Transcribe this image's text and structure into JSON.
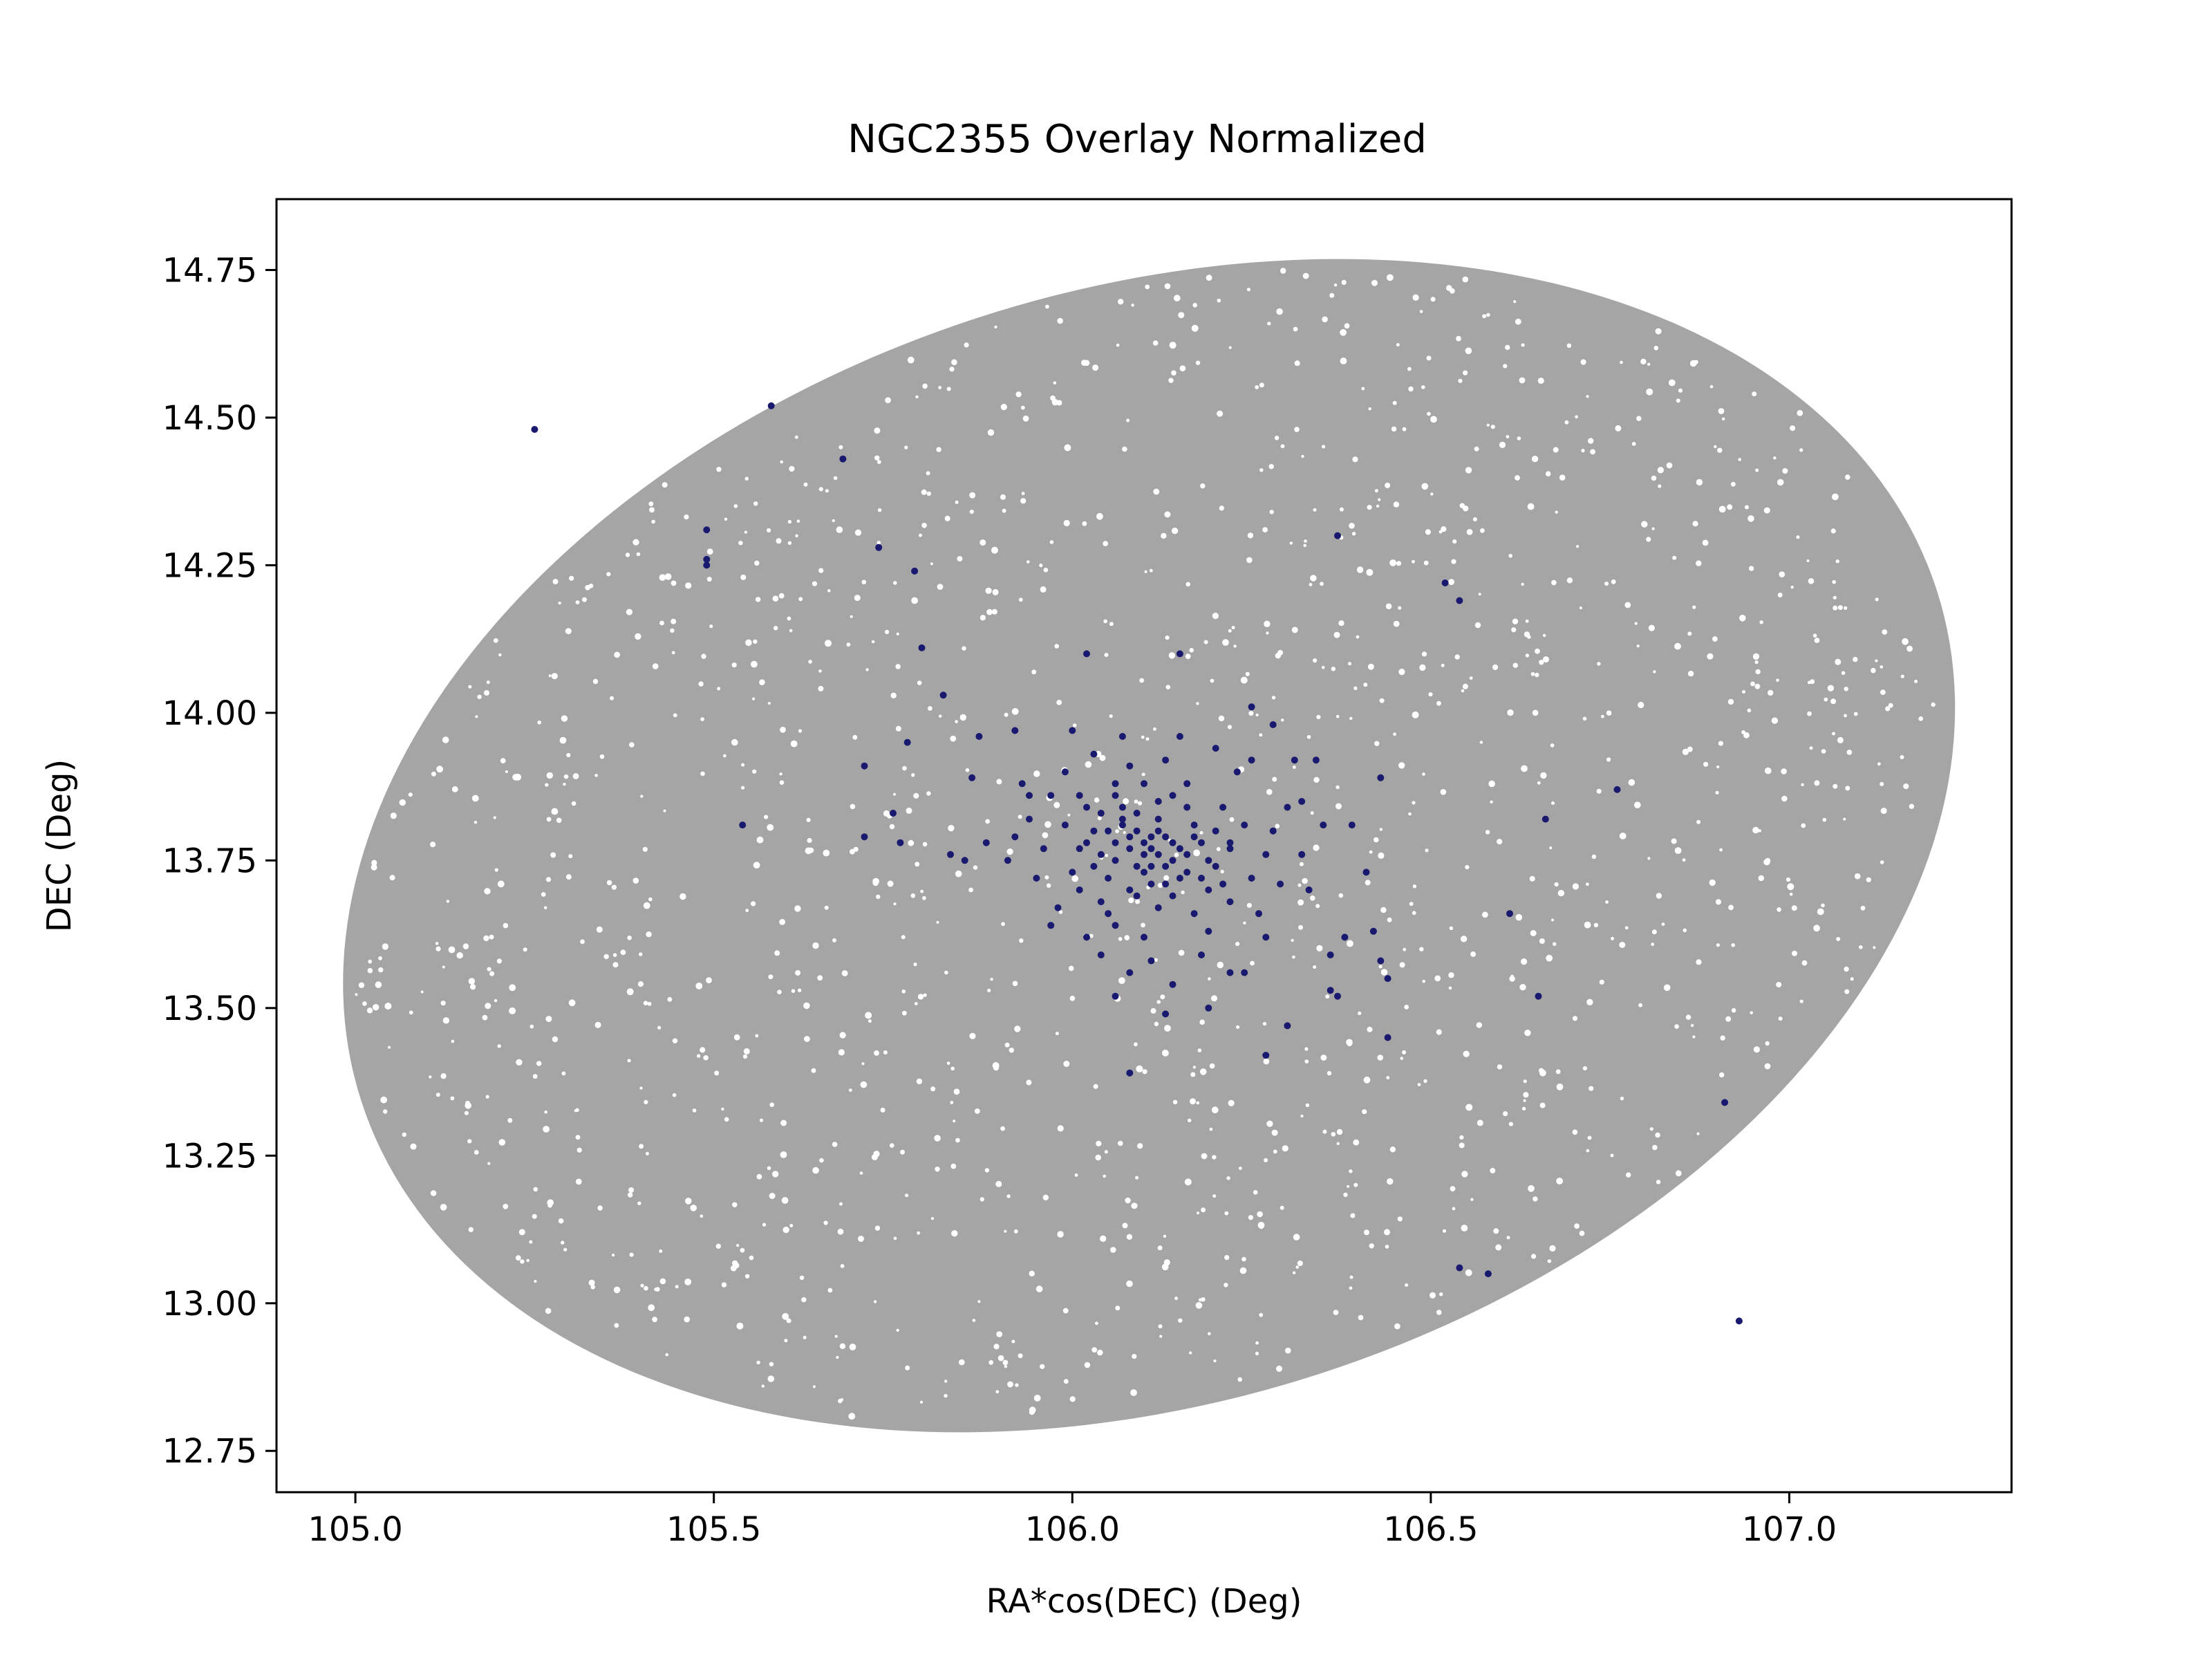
{
  "chart_data": {
    "type": "scatter",
    "title": "NGC2355 Overlay Normalized",
    "xlabel": "RA*cos(DEC) (Deg)",
    "ylabel": "DEC (Deg)",
    "xlim": [
      104.89,
      107.31
    ],
    "ylim": [
      12.68,
      14.87
    ],
    "grid": false,
    "x_ticks": [
      {
        "value": 105.0,
        "label": "105.0"
      },
      {
        "value": 105.5,
        "label": "105.5"
      },
      {
        "value": 106.0,
        "label": "106.0"
      },
      {
        "value": 106.5,
        "label": "106.5"
      },
      {
        "value": 107.0,
        "label": "107.0"
      }
    ],
    "y_ticks": [
      {
        "value": 12.75,
        "label": "12.75"
      },
      {
        "value": 13.0,
        "label": "13.00"
      },
      {
        "value": 13.25,
        "label": "13.25"
      },
      {
        "value": 13.5,
        "label": "13.50"
      },
      {
        "value": 13.75,
        "label": "13.75"
      },
      {
        "value": 14.0,
        "label": "14.00"
      },
      {
        "value": 14.25,
        "label": "14.25"
      },
      {
        "value": 14.5,
        "label": "14.50"
      },
      {
        "value": 14.75,
        "label": "14.75"
      }
    ],
    "field": {
      "description": "dense uniform field-star region (elliptical)",
      "color": "#a5a5a5",
      "center": [
        106.107,
        13.775
      ],
      "semi_axes_deg": [
        1.155,
        0.94
      ],
      "rotation_deg": -18
    },
    "series": [
      {
        "color": "#191970",
        "points": [
          [
            105.25,
            14.48
          ],
          [
            105.58,
            14.52
          ],
          [
            105.68,
            14.43
          ],
          [
            105.49,
            14.31
          ],
          [
            105.49,
            14.26
          ],
          [
            105.49,
            14.25
          ],
          [
            105.73,
            14.28
          ],
          [
            105.78,
            14.24
          ],
          [
            106.37,
            14.3
          ],
          [
            106.52,
            14.22
          ],
          [
            106.54,
            14.19
          ],
          [
            105.79,
            14.11
          ],
          [
            106.02,
            14.1
          ],
          [
            106.15,
            14.1
          ],
          [
            105.82,
            14.03
          ],
          [
            106.25,
            14.01
          ],
          [
            105.71,
            13.91
          ],
          [
            105.54,
            13.81
          ],
          [
            105.71,
            13.79
          ],
          [
            105.75,
            13.83
          ],
          [
            105.76,
            13.78
          ],
          [
            105.77,
            13.95
          ],
          [
            105.83,
            13.76
          ],
          [
            105.85,
            13.75
          ],
          [
            105.87,
            13.96
          ],
          [
            105.86,
            13.89
          ],
          [
            105.88,
            13.78
          ],
          [
            105.91,
            13.75
          ],
          [
            105.94,
            13.86
          ],
          [
            105.92,
            13.97
          ],
          [
            106.43,
            13.89
          ],
          [
            106.66,
            13.82
          ],
          [
            106.76,
            13.87
          ],
          [
            106.39,
            13.81
          ],
          [
            106.35,
            13.81
          ],
          [
            106.32,
            13.85
          ],
          [
            106.34,
            13.92
          ],
          [
            106.31,
            13.92
          ],
          [
            106.28,
            13.98
          ],
          [
            106.41,
            13.73
          ],
          [
            106.42,
            13.63
          ],
          [
            106.38,
            13.62
          ],
          [
            106.43,
            13.58
          ],
          [
            106.44,
            13.55
          ],
          [
            106.36,
            13.59
          ],
          [
            106.37,
            13.52
          ],
          [
            106.36,
            13.53
          ],
          [
            106.44,
            13.45
          ],
          [
            106.61,
            13.66
          ],
          [
            106.65,
            13.52
          ],
          [
            106.3,
            13.47
          ],
          [
            106.27,
            13.42
          ],
          [
            106.19,
            13.5
          ],
          [
            106.13,
            13.49
          ],
          [
            106.08,
            13.39
          ],
          [
            106.22,
            13.56
          ],
          [
            106.24,
            13.56
          ],
          [
            106.06,
            13.52
          ],
          [
            106.08,
            13.56
          ],
          [
            106.91,
            13.34
          ],
          [
            106.54,
            13.06
          ],
          [
            106.58,
            13.05
          ],
          [
            106.93,
            12.97
          ],
          [
            106.1,
            13.78
          ],
          [
            106.12,
            13.76
          ],
          [
            106.09,
            13.8
          ],
          [
            106.11,
            13.74
          ],
          [
            106.13,
            13.79
          ],
          [
            106.08,
            13.77
          ],
          [
            106.14,
            13.75
          ],
          [
            106.1,
            13.73
          ],
          [
            106.07,
            13.81
          ],
          [
            106.15,
            13.77
          ],
          [
            106.12,
            13.82
          ],
          [
            106.09,
            13.74
          ],
          [
            106.06,
            13.78
          ],
          [
            106.16,
            13.73
          ],
          [
            106.11,
            13.79
          ],
          [
            106.04,
            13.76
          ],
          [
            106.18,
            13.78
          ],
          [
            106.13,
            13.71
          ],
          [
            106.07,
            13.84
          ],
          [
            106.17,
            13.81
          ],
          [
            106.03,
            13.8
          ],
          [
            106.2,
            13.74
          ],
          [
            106.05,
            13.72
          ],
          [
            106.14,
            13.86
          ],
          [
            106.01,
            13.77
          ],
          [
            106.22,
            13.77
          ],
          [
            106.09,
            13.69
          ],
          [
            106.19,
            13.7
          ],
          [
            106.02,
            13.84
          ],
          [
            106.16,
            13.88
          ],
          [
            106.0,
            13.73
          ],
          [
            106.24,
            13.81
          ],
          [
            106.06,
            13.88
          ],
          [
            106.21,
            13.84
          ],
          [
            106.12,
            13.67
          ],
          [
            105.99,
            13.81
          ],
          [
            106.25,
            13.72
          ],
          [
            106.04,
            13.68
          ],
          [
            106.17,
            13.66
          ],
          [
            106.08,
            13.91
          ],
          [
            105.97,
            13.86
          ],
          [
            106.27,
            13.76
          ],
          [
            106.01,
            13.7
          ],
          [
            106.22,
            13.68
          ],
          [
            106.13,
            13.92
          ],
          [
            105.96,
            13.77
          ],
          [
            106.28,
            13.8
          ],
          [
            106.06,
            13.64
          ],
          [
            106.19,
            13.63
          ],
          [
            106.03,
            13.93
          ],
          [
            105.98,
            13.67
          ],
          [
            106.29,
            13.71
          ],
          [
            105.94,
            13.82
          ],
          [
            106.23,
            13.9
          ],
          [
            106.1,
            13.62
          ],
          [
            105.99,
            13.9
          ],
          [
            106.26,
            13.66
          ],
          [
            105.95,
            13.72
          ],
          [
            106.3,
            13.84
          ],
          [
            106.15,
            13.96
          ],
          [
            106.02,
            13.62
          ],
          [
            106.2,
            13.94
          ],
          [
            105.93,
            13.88
          ],
          [
            106.32,
            13.76
          ],
          [
            106.07,
            13.96
          ],
          [
            105.97,
            13.64
          ],
          [
            106.27,
            13.62
          ],
          [
            106.11,
            13.58
          ],
          [
            106.18,
            13.59
          ],
          [
            106.04,
            13.59
          ],
          [
            106.33,
            13.7
          ],
          [
            105.92,
            13.79
          ],
          [
            106.25,
            13.92
          ],
          [
            106.0,
            13.97
          ],
          [
            106.14,
            13.54
          ],
          [
            106.09,
            13.83
          ],
          [
            106.11,
            13.77
          ],
          [
            106.13,
            13.74
          ],
          [
            106.08,
            13.79
          ],
          [
            106.12,
            13.8
          ],
          [
            106.1,
            13.76
          ],
          [
            106.14,
            13.78
          ],
          [
            106.06,
            13.75
          ],
          [
            106.16,
            13.76
          ],
          [
            106.07,
            13.82
          ],
          [
            106.15,
            13.72
          ],
          [
            106.11,
            13.71
          ],
          [
            106.05,
            13.8
          ],
          [
            106.17,
            13.79
          ],
          [
            106.03,
            13.74
          ],
          [
            106.19,
            13.75
          ],
          [
            106.12,
            13.85
          ],
          [
            106.08,
            13.7
          ],
          [
            106.2,
            13.8
          ],
          [
            106.04,
            13.83
          ],
          [
            106.18,
            13.72
          ],
          [
            106.06,
            13.86
          ],
          [
            106.14,
            13.69
          ],
          [
            106.22,
            13.78
          ],
          [
            106.02,
            13.78
          ],
          [
            106.1,
            13.88
          ],
          [
            106.16,
            13.84
          ],
          [
            106.05,
            13.66
          ],
          [
            106.21,
            13.71
          ],
          [
            106.01,
            13.86
          ]
        ]
      }
    ]
  }
}
